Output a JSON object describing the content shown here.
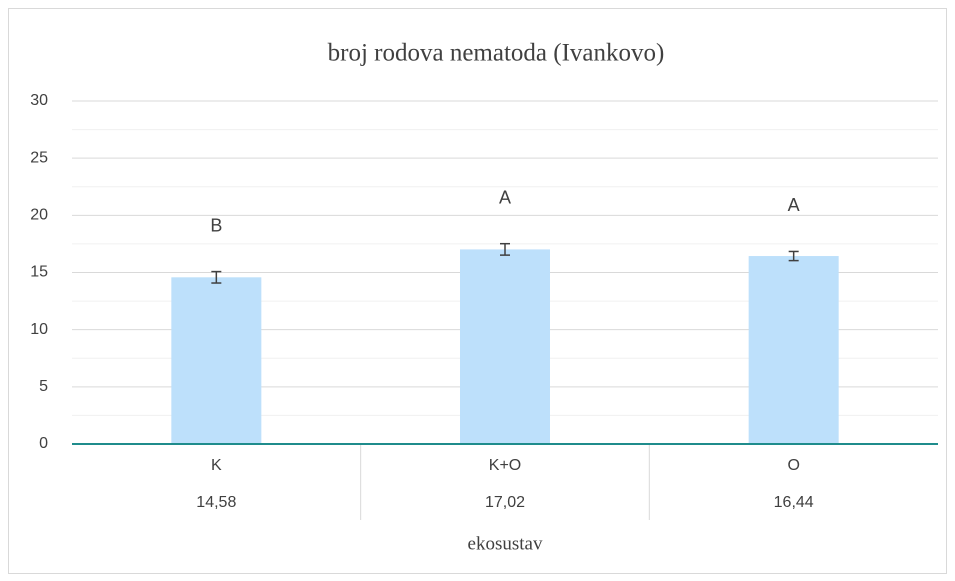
{
  "chart_data": {
    "type": "bar",
    "title": "broj rodova nematoda (Ivankovo)",
    "x_label": "ekosustav",
    "categories": [
      "K",
      "K+O",
      "O"
    ],
    "values": [
      14.58,
      17.02,
      16.44
    ],
    "value_labels": [
      "14,58",
      "17,02",
      "16,44"
    ],
    "errors": [
      0.5,
      0.5,
      0.4
    ],
    "annotations": [
      "B",
      "A",
      "A"
    ],
    "color": "#bde0fb",
    "ylim": [
      0,
      30
    ],
    "yticks": [
      0,
      5,
      10,
      15,
      20,
      25,
      30
    ],
    "yminorticks": [
      2.5,
      7.5,
      12.5,
      17.5,
      22.5,
      27.5
    ],
    "grid": true
  }
}
